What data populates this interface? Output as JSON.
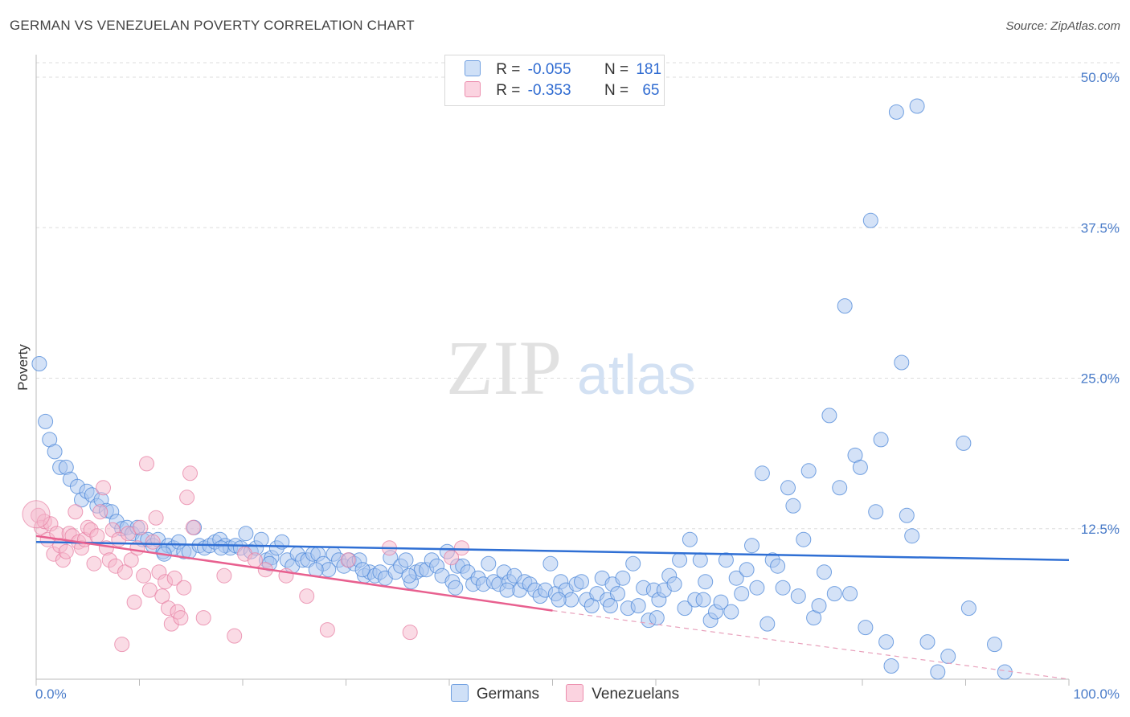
{
  "header": {
    "title": "GERMAN VS VENEZUELAN POVERTY CORRELATION CHART",
    "source": "Source: ZipAtlas.com"
  },
  "watermark": {
    "zip": "ZIP",
    "atlas": "atlas"
  },
  "stats_legend": {
    "rows": [
      {
        "r_label": "R =",
        "r_value": "-0.055",
        "n_label": "N =",
        "n_value": "181",
        "color": "#a9c6ef"
      },
      {
        "r_label": "R =",
        "r_value": "-0.353",
        "n_label": "N =",
        "n_value": "65",
        "color": "#f5b7cb"
      }
    ]
  },
  "bottom_legend": [
    {
      "label": "Germans",
      "color": "#a9c6ef"
    },
    {
      "label": "Venezuelans",
      "color": "#f5b7cb"
    }
  ],
  "chart_data": {
    "type": "scatter",
    "title": "GERMAN VS VENEZUELAN POVERTY CORRELATION CHART",
    "ylabel": "Poverty",
    "xlabel": "",
    "xlim": [
      0,
      100
    ],
    "ylim": [
      0,
      52
    ],
    "x_tick_labels": [
      "0.0%",
      "100.0%"
    ],
    "y_ticks": [
      12.5,
      25.0,
      37.5,
      50.0
    ],
    "y_tick_labels": [
      "12.5%",
      "25.0%",
      "37.5%",
      "50.0%"
    ],
    "grid": "horizontal dashed",
    "legend_position": "top-center",
    "series": [
      {
        "name": "Germans",
        "color": "#4a86d8",
        "fill": "#a9c6ef",
        "r": -0.055,
        "n": 181,
        "trend": {
          "x0": 0,
          "y0": 11.4,
          "x1": 100,
          "y1": 9.9
        },
        "points": [
          [
            0.3,
            26.2
          ],
          [
            0.9,
            21.4
          ],
          [
            1.3,
            19.9
          ],
          [
            1.8,
            18.9
          ],
          [
            2.3,
            17.6
          ],
          [
            2.9,
            17.6
          ],
          [
            3.3,
            16.6
          ],
          [
            4.0,
            16.0
          ],
          [
            4.4,
            14.9
          ],
          [
            4.9,
            15.6
          ],
          [
            5.4,
            15.3
          ],
          [
            5.9,
            14.4
          ],
          [
            6.3,
            14.9
          ],
          [
            6.8,
            14.0
          ],
          [
            7.3,
            13.9
          ],
          [
            7.8,
            13.1
          ],
          [
            8.3,
            12.5
          ],
          [
            8.8,
            12.6
          ],
          [
            9.3,
            12.1
          ],
          [
            9.8,
            12.6
          ],
          [
            10.3,
            11.6
          ],
          [
            10.8,
            11.6
          ],
          [
            11.3,
            11.1
          ],
          [
            11.8,
            11.6
          ],
          [
            12.3,
            10.6
          ],
          [
            12.8,
            11.1
          ],
          [
            13.3,
            10.9
          ],
          [
            13.8,
            11.4
          ],
          [
            14.3,
            10.6
          ],
          [
            14.8,
            10.6
          ],
          [
            15.3,
            12.6
          ],
          [
            15.8,
            11.1
          ],
          [
            16.3,
            10.9
          ],
          [
            16.8,
            11.1
          ],
          [
            17.3,
            11.4
          ],
          [
            17.8,
            11.6
          ],
          [
            18.3,
            11.1
          ],
          [
            18.8,
            10.9
          ],
          [
            19.3,
            11.1
          ],
          [
            19.8,
            10.9
          ],
          [
            20.3,
            12.1
          ],
          [
            20.8,
            10.6
          ],
          [
            21.3,
            10.9
          ],
          [
            21.8,
            11.6
          ],
          [
            22.3,
            9.9
          ],
          [
            22.8,
            10.1
          ],
          [
            23.3,
            10.9
          ],
          [
            23.8,
            11.4
          ],
          [
            24.3,
            9.9
          ],
          [
            24.8,
            9.4
          ],
          [
            25.3,
            10.4
          ],
          [
            25.8,
            9.9
          ],
          [
            26.3,
            9.9
          ],
          [
            26.8,
            10.4
          ],
          [
            27.3,
            10.4
          ],
          [
            27.8,
            9.6
          ],
          [
            28.3,
            9.1
          ],
          [
            28.8,
            10.4
          ],
          [
            29.3,
            9.9
          ],
          [
            29.8,
            9.4
          ],
          [
            30.3,
            9.9
          ],
          [
            30.8,
            9.6
          ],
          [
            31.3,
            9.9
          ],
          [
            31.8,
            8.6
          ],
          [
            32.3,
            8.9
          ],
          [
            32.8,
            8.6
          ],
          [
            33.3,
            8.9
          ],
          [
            33.8,
            8.4
          ],
          [
            34.3,
            10.1
          ],
          [
            34.8,
            8.9
          ],
          [
            35.3,
            9.4
          ],
          [
            35.8,
            9.9
          ],
          [
            36.3,
            8.1
          ],
          [
            36.8,
            8.9
          ],
          [
            37.3,
            9.1
          ],
          [
            37.8,
            9.1
          ],
          [
            38.3,
            9.9
          ],
          [
            38.8,
            9.4
          ],
          [
            39.3,
            8.6
          ],
          [
            39.8,
            10.6
          ],
          [
            40.3,
            8.1
          ],
          [
            40.8,
            9.4
          ],
          [
            41.3,
            9.4
          ],
          [
            41.8,
            8.9
          ],
          [
            42.3,
            7.9
          ],
          [
            42.8,
            8.4
          ],
          [
            43.3,
            7.9
          ],
          [
            43.8,
            9.6
          ],
          [
            44.3,
            8.1
          ],
          [
            44.8,
            7.9
          ],
          [
            45.3,
            8.9
          ],
          [
            45.8,
            8.1
          ],
          [
            46.3,
            8.6
          ],
          [
            46.8,
            7.4
          ],
          [
            47.3,
            8.1
          ],
          [
            47.8,
            7.9
          ],
          [
            48.3,
            7.4
          ],
          [
            48.8,
            6.9
          ],
          [
            49.3,
            7.4
          ],
          [
            49.8,
            9.6
          ],
          [
            50.3,
            7.1
          ],
          [
            50.8,
            8.1
          ],
          [
            51.3,
            7.4
          ],
          [
            51.8,
            6.6
          ],
          [
            52.3,
            7.9
          ],
          [
            52.8,
            8.1
          ],
          [
            53.3,
            6.6
          ],
          [
            53.8,
            6.1
          ],
          [
            54.3,
            7.1
          ],
          [
            54.8,
            8.4
          ],
          [
            55.3,
            6.6
          ],
          [
            55.8,
            7.9
          ],
          [
            56.3,
            7.1
          ],
          [
            56.8,
            8.4
          ],
          [
            57.3,
            5.9
          ],
          [
            57.8,
            9.6
          ],
          [
            58.3,
            6.1
          ],
          [
            58.8,
            7.6
          ],
          [
            59.3,
            4.9
          ],
          [
            59.8,
            7.4
          ],
          [
            60.3,
            6.6
          ],
          [
            60.8,
            7.4
          ],
          [
            61.3,
            8.6
          ],
          [
            61.8,
            7.9
          ],
          [
            62.3,
            9.9
          ],
          [
            62.8,
            5.9
          ],
          [
            63.3,
            11.6
          ],
          [
            63.8,
            6.6
          ],
          [
            64.3,
            9.9
          ],
          [
            64.8,
            8.1
          ],
          [
            65.3,
            4.9
          ],
          [
            65.8,
            5.6
          ],
          [
            66.3,
            6.4
          ],
          [
            66.8,
            9.9
          ],
          [
            67.3,
            5.6
          ],
          [
            67.8,
            8.4
          ],
          [
            68.3,
            7.1
          ],
          [
            68.8,
            9.1
          ],
          [
            69.3,
            11.1
          ],
          [
            69.8,
            7.6
          ],
          [
            70.3,
            17.1
          ],
          [
            70.8,
            4.6
          ],
          [
            71.3,
            9.9
          ],
          [
            71.8,
            9.4
          ],
          [
            72.3,
            7.6
          ],
          [
            72.8,
            15.9
          ],
          [
            73.3,
            14.4
          ],
          [
            73.8,
            6.9
          ],
          [
            74.3,
            11.6
          ],
          [
            74.8,
            17.3
          ],
          [
            75.3,
            5.1
          ],
          [
            75.8,
            6.1
          ],
          [
            76.3,
            8.9
          ],
          [
            76.8,
            21.9
          ],
          [
            77.3,
            7.1
          ],
          [
            77.8,
            15.9
          ],
          [
            78.3,
            31.0
          ],
          [
            78.8,
            7.1
          ],
          [
            79.3,
            18.6
          ],
          [
            79.8,
            17.6
          ],
          [
            80.3,
            4.3
          ],
          [
            80.8,
            38.1
          ],
          [
            81.3,
            13.9
          ],
          [
            81.8,
            19.9
          ],
          [
            82.3,
            3.1
          ],
          [
            82.8,
            1.1
          ],
          [
            83.3,
            47.1
          ],
          [
            83.8,
            26.3
          ],
          [
            84.3,
            13.6
          ],
          [
            84.8,
            11.9
          ],
          [
            85.3,
            47.6
          ],
          [
            86.3,
            3.1
          ],
          [
            87.3,
            0.6
          ],
          [
            88.3,
            1.9
          ],
          [
            89.8,
            19.6
          ],
          [
            90.3,
            5.9
          ],
          [
            92.8,
            2.9
          ],
          [
            93.8,
            0.6
          ],
          [
            12.4,
            10.4
          ],
          [
            17.9,
            10.9
          ],
          [
            22.6,
            9.6
          ],
          [
            27.1,
            9.1
          ],
          [
            31.6,
            9.1
          ],
          [
            36.1,
            8.6
          ],
          [
            40.6,
            7.6
          ],
          [
            45.6,
            7.4
          ],
          [
            50.6,
            6.6
          ],
          [
            55.6,
            6.1
          ],
          [
            60.1,
            5.1
          ],
          [
            64.6,
            6.6
          ]
        ]
      },
      {
        "name": "Venezuelans",
        "color": "#e77fa3",
        "fill": "#f5b7cb",
        "r": -0.353,
        "n": 65,
        "trend": {
          "x0": 0,
          "y0": 11.9,
          "x1": 50,
          "y1": 5.7
        },
        "trend_dashed": {
          "x0": 50,
          "y0": 5.7,
          "x1": 100,
          "y1": -0.5
        },
        "points": [
          [
            0.2,
            13.6
          ],
          [
            0.5,
            12.6
          ],
          [
            0.8,
            13.1
          ],
          [
            1.1,
            11.6
          ],
          [
            1.4,
            12.9
          ],
          [
            1.7,
            10.4
          ],
          [
            2.0,
            12.1
          ],
          [
            2.3,
            11.1
          ],
          [
            2.6,
            9.9
          ],
          [
            2.9,
            10.6
          ],
          [
            3.2,
            12.1
          ],
          [
            3.5,
            11.9
          ],
          [
            3.8,
            13.9
          ],
          [
            4.1,
            11.4
          ],
          [
            4.4,
            10.9
          ],
          [
            4.7,
            11.6
          ],
          [
            5.0,
            12.6
          ],
          [
            5.3,
            12.4
          ],
          [
            5.6,
            9.6
          ],
          [
            5.9,
            11.9
          ],
          [
            6.2,
            13.9
          ],
          [
            6.5,
            15.9
          ],
          [
            6.8,
            10.9
          ],
          [
            7.1,
            9.9
          ],
          [
            7.4,
            12.4
          ],
          [
            7.7,
            9.4
          ],
          [
            8.0,
            11.6
          ],
          [
            8.3,
            2.9
          ],
          [
            8.6,
            8.9
          ],
          [
            8.9,
            12.1
          ],
          [
            9.2,
            9.9
          ],
          [
            9.5,
            6.4
          ],
          [
            9.8,
            10.9
          ],
          [
            10.1,
            12.6
          ],
          [
            10.4,
            8.6
          ],
          [
            10.7,
            17.9
          ],
          [
            11.0,
            7.4
          ],
          [
            11.3,
            11.4
          ],
          [
            11.6,
            13.4
          ],
          [
            11.9,
            8.9
          ],
          [
            12.2,
            6.9
          ],
          [
            12.5,
            8.1
          ],
          [
            12.8,
            5.9
          ],
          [
            13.1,
            4.6
          ],
          [
            13.4,
            8.4
          ],
          [
            13.7,
            5.6
          ],
          [
            14.0,
            5.1
          ],
          [
            14.3,
            7.6
          ],
          [
            14.6,
            15.1
          ],
          [
            14.9,
            17.1
          ],
          [
            15.2,
            12.6
          ],
          [
            16.2,
            5.1
          ],
          [
            18.2,
            8.6
          ],
          [
            19.2,
            3.6
          ],
          [
            20.2,
            10.4
          ],
          [
            21.2,
            9.9
          ],
          [
            22.2,
            9.1
          ],
          [
            24.2,
            8.6
          ],
          [
            26.2,
            6.9
          ],
          [
            28.2,
            4.1
          ],
          [
            30.2,
            9.9
          ],
          [
            34.2,
            10.9
          ],
          [
            36.2,
            3.9
          ],
          [
            40.2,
            10.1
          ],
          [
            41.2,
            10.9
          ]
        ]
      }
    ]
  }
}
